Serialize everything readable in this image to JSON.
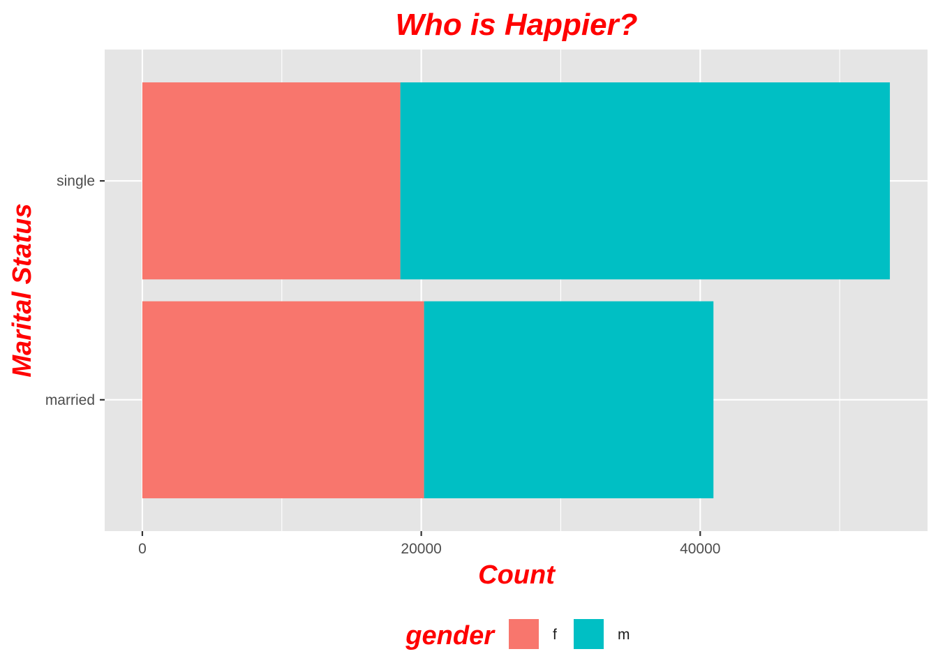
{
  "chart_data": {
    "type": "bar",
    "orientation": "horizontal",
    "stacked": true,
    "title": "Who is Happier?",
    "xlabel": "Count",
    "ylabel": "Marital Status",
    "categories": [
      "married",
      "single"
    ],
    "series": [
      {
        "name": "f",
        "values": [
          20200,
          18500
        ],
        "color": "#F8766D"
      },
      {
        "name": "m",
        "values": [
          20750,
          35100
        ],
        "color": "#00BFC4"
      }
    ],
    "xlim": [
      -2700,
      56300
    ],
    "xticks": [
      0,
      20000,
      40000
    ],
    "x_minor_ticks": [
      10000,
      30000,
      50000
    ],
    "grid": true,
    "legend": {
      "title": "gender",
      "position": "bottom"
    },
    "colors": {
      "panel": "#E5E5E5",
      "grid": "#FFFFFF",
      "title": "#FF0000"
    }
  }
}
